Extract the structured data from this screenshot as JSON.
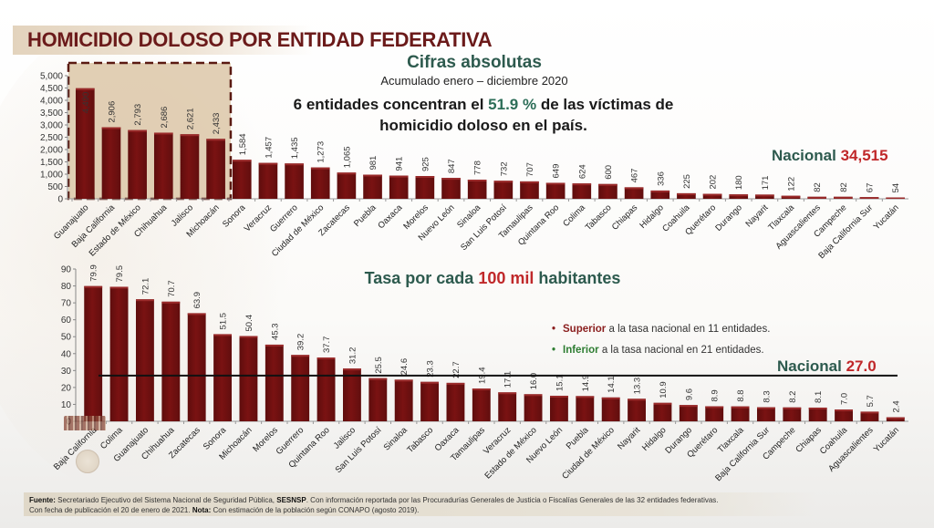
{
  "header": {
    "title": "HOMICIDIO DOLOSO POR ENTIDAD FEDERATIVA"
  },
  "top": {
    "subtitle": "Cifras absolutas",
    "period": "Acumulado enero – diciembre 2020",
    "statement_pre": "6 entidades concentran el ",
    "statement_highlight": "51.9 %",
    "statement_post": " de las víctimas de homicidio doloso en el país.",
    "national_label": "Nacional ",
    "national_value": "34,515"
  },
  "bottom": {
    "subtitle_pre": "Tasa por cada ",
    "subtitle_highlight": "100 mil",
    "subtitle_post": " habitantes",
    "legend": [
      {
        "bullet": "•",
        "keyword": "Superior",
        "text": " a la tasa nacional en 11 entidades."
      },
      {
        "bullet": "•",
        "keyword": "Inferior",
        "text": " a la tasa nacional en 21 entidades."
      }
    ],
    "national_label": "Nacional ",
    "national_value": "27.0"
  },
  "footer": {
    "line1_label": "Fuente:",
    "line1_text_a": " Secretariado Ejecutivo del Sistema Nacional de Seguridad Pública, ",
    "line1_bold": "SESNSP",
    "line1_text_b": ". Con información reportada por las Procuradurías Generales de Justicia o Fiscalías Generales de las 32 entidades federativas.",
    "line2_text": "Con fecha de publicación el 20 de enero de 2021. ",
    "line2_label": "Nota:",
    "line2_text_b": " Con estimación de la población según CONAPO (agosto 2019)."
  },
  "colors": {
    "bar": "#7a1212",
    "bar_highlight": "#9a2a2a",
    "title": "#6b1a1a",
    "accent_green": "#2d5a4e",
    "accent_red": "#c0282a",
    "highlight_box": "#dcc7a8"
  },
  "chart_data": [
    {
      "type": "bar",
      "title": "Cifras absolutas",
      "subtitle": "Acumulado enero – diciembre 2020",
      "xlabel": "",
      "ylabel": "",
      "ylim": [
        0,
        5000
      ],
      "yticks": [
        0,
        500,
        1000,
        1500,
        2000,
        2500,
        3000,
        3500,
        4000,
        4500,
        5000
      ],
      "ytick_labels": [
        "0",
        "500",
        "1,000",
        "1,500",
        "2,000",
        "2,500",
        "3,000",
        "3,500",
        "4,000",
        "4,500",
        "5,000"
      ],
      "grid": false,
      "highlighted_count": 6,
      "annotation": "Nacional 34,515",
      "categories": [
        "Guanajuato",
        "Baja California",
        "Estado de México",
        "Chihuahua",
        "Jalisco",
        "Michoacán",
        "Sonora",
        "Veracruz",
        "Guerrero",
        "Ciudad de México",
        "Zacatecas",
        "Puebla",
        "Oaxaca",
        "Morelos",
        "Nuevo León",
        "Sinaloa",
        "San Luis Potosí",
        "Tamaulipas",
        "Quintana Roo",
        "Colima",
        "Tabasco",
        "Chiapas",
        "Hidalgo",
        "Coahuila",
        "Querétaro",
        "Durango",
        "Nayarit",
        "Tlaxcala",
        "Aguascalientes",
        "Campeche",
        "Baja California Sur",
        "Yucatán"
      ],
      "values": [
        4490,
        2906,
        2793,
        2686,
        2621,
        2433,
        1584,
        1457,
        1435,
        1273,
        1065,
        981,
        941,
        925,
        847,
        778,
        732,
        707,
        649,
        624,
        600,
        467,
        336,
        225,
        202,
        180,
        171,
        122,
        82,
        82,
        67,
        54
      ],
      "value_labels": [
        "4,490",
        "2,906",
        "2,793",
        "2,686",
        "2,621",
        "2,433",
        "1,584",
        "1,457",
        "1,435",
        "1,273",
        "1,065",
        "981",
        "941",
        "925",
        "847",
        "778",
        "732",
        "707",
        "649",
        "624",
        "600",
        "467",
        "336",
        "225",
        "202",
        "180",
        "171",
        "122",
        "82",
        "82",
        "67",
        "54"
      ]
    },
    {
      "type": "bar",
      "title": "Tasa por cada 100 mil habitantes",
      "xlabel": "",
      "ylabel": "",
      "ylim": [
        0,
        90
      ],
      "yticks": [
        0,
        10,
        20,
        30,
        40,
        50,
        60,
        70,
        80,
        90
      ],
      "ytick_labels": [
        "0",
        "10",
        "20",
        "30",
        "40",
        "50",
        "60",
        "70",
        "80",
        "90"
      ],
      "grid": false,
      "reference_line": {
        "value": 27.0,
        "label": "Nacional 27.0"
      },
      "categories": [
        "Baja California",
        "Colima",
        "Guanajuato",
        "Chihuahua",
        "Zacatecas",
        "Sonora",
        "Michoacán",
        "Morelos",
        "Guerrero",
        "Quintana Roo",
        "Jalisco",
        "San Luis Potosí",
        "Sinaloa",
        "Tabasco",
        "Oaxaca",
        "Tamaulipas",
        "Veracruz",
        "Estado de México",
        "Nuevo León",
        "Puebla",
        "Ciudad de México",
        "Nayarit",
        "Hidalgo",
        "Durango",
        "Querétaro",
        "Tlaxcala",
        "Baja California Sur",
        "Campeche",
        "Chiapas",
        "Coahuila",
        "Aguascalientes",
        "Yucatán"
      ],
      "values": [
        79.9,
        79.5,
        72.1,
        70.7,
        63.9,
        51.5,
        50.4,
        45.3,
        39.2,
        37.7,
        31.2,
        25.5,
        24.6,
        23.3,
        22.7,
        19.4,
        17.1,
        16.0,
        15.1,
        14.9,
        14.1,
        13.3,
        10.9,
        9.6,
        8.9,
        8.8,
        8.3,
        8.2,
        8.1,
        7.0,
        5.7,
        2.4
      ],
      "value_labels": [
        "79.9",
        "79.5",
        "72.1",
        "70.7",
        "63.9",
        "51.5",
        "50.4",
        "45.3",
        "39.2",
        "37.7",
        "31.2",
        "25.5",
        "24.6",
        "23.3",
        "22.7",
        "19.4",
        "17.1",
        "16.0",
        "15.1",
        "14.9",
        "14.1",
        "13.3",
        "10.9",
        "9.6",
        "8.9",
        "8.8",
        "8.3",
        "8.2",
        "8.1",
        "7.0",
        "5.7",
        "2.4"
      ]
    }
  ]
}
